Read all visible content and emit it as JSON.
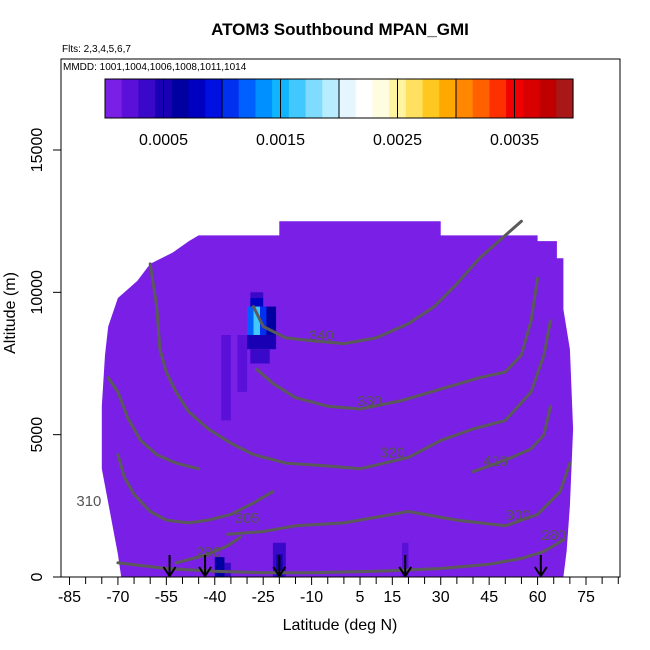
{
  "chart_data": {
    "type": "heatmap",
    "title": "ATOM3 Southbound MPAN_GMI",
    "flights_note": "Flts: 2,3,4,5,6,7",
    "dates_note": "MMDD: 1001,1004,1006,1008,1011,1014",
    "xlabel": "Latitude (deg N)",
    "ylabel": "Altitude (m)",
    "xlim": [
      -85,
      85
    ],
    "ylim": [
      0,
      17500
    ],
    "x_tick_labels": [
      "-85",
      "-70",
      "-55",
      "-40",
      "-25",
      "-10",
      "5",
      "15",
      "30",
      "45",
      "60",
      "75"
    ],
    "x_tick_values": [
      -85,
      -70,
      -55,
      -40,
      -25,
      -10,
      5,
      15,
      30,
      45,
      60,
      75
    ],
    "x_minor_ticks": [
      -80,
      -75,
      -65,
      -60,
      -50,
      -45,
      -35,
      -30,
      -20,
      -15,
      -5,
      0,
      10,
      20,
      25,
      35,
      40,
      50,
      55,
      65,
      70,
      80,
      85
    ],
    "y_tick_labels": [
      "0",
      "5000",
      "10000",
      "15000"
    ],
    "y_tick_values": [
      0,
      5000,
      10000,
      15000
    ],
    "colorbar": {
      "range": [
        0,
        0.004
      ],
      "tick_labels": [
        "0.0005",
        "0.0015",
        "0.0025",
        "0.0035"
      ],
      "tick_values": [
        0.0005,
        0.0015,
        0.0025,
        0.0035
      ],
      "colors": [
        "#7a1fe6",
        "#5a10d8",
        "#3a08c8",
        "#1a00b4",
        "#0000a0",
        "#0000c0",
        "#0010e0",
        "#0030f0",
        "#0060ff",
        "#0090ff",
        "#10b4ff",
        "#40c8ff",
        "#80dcff",
        "#b8ecff",
        "#e6f6ff",
        "#ffffff",
        "#fffde0",
        "#fff4a0",
        "#ffe060",
        "#ffc820",
        "#ffa800",
        "#ff8800",
        "#ff6000",
        "#ff3000",
        "#f00000",
        "#d80000",
        "#c00000",
        "#a81818"
      ]
    },
    "field": {
      "background_color": "#7a1fe6",
      "domain_outline": [
        [
          -69,
          0
        ],
        [
          -70,
          800
        ],
        [
          -75,
          3800
        ],
        [
          -75,
          6000
        ],
        [
          -74,
          7800
        ],
        [
          -73,
          8800
        ],
        [
          -70,
          9800
        ],
        [
          -64,
          10400
        ],
        [
          -60,
          11000
        ],
        [
          -53,
          11400
        ],
        [
          -48,
          11800
        ],
        [
          -45,
          12000
        ],
        [
          -39,
          12000
        ],
        [
          -20,
          12000
        ],
        [
          -20,
          12500
        ],
        [
          30,
          12500
        ],
        [
          30,
          12000
        ],
        [
          60,
          12000
        ],
        [
          60,
          11800
        ],
        [
          66,
          11800
        ],
        [
          66,
          11200
        ],
        [
          68,
          11200
        ],
        [
          68,
          9400
        ],
        [
          70,
          8000
        ],
        [
          71,
          5200
        ],
        [
          70,
          2500
        ],
        [
          69,
          900
        ],
        [
          68,
          0
        ]
      ],
      "cells": [
        {
          "lat": [
            -29,
            -25
          ],
          "alt": [
            9800,
            10000
          ],
          "value": 0.0004
        },
        {
          "lat": [
            -29,
            -25
          ],
          "alt": [
            9500,
            9800
          ],
          "value": 0.0008
        },
        {
          "lat": [
            -30,
            -28
          ],
          "alt": [
            8500,
            9500
          ],
          "value": 0.0012
        },
        {
          "lat": [
            -28,
            -26
          ],
          "alt": [
            8500,
            9500
          ],
          "value": 0.0017
        },
        {
          "lat": [
            -26,
            -24
          ],
          "alt": [
            8500,
            9500
          ],
          "value": 0.001
        },
        {
          "lat": [
            -24,
            -21
          ],
          "alt": [
            8500,
            9500
          ],
          "value": 0.0006
        },
        {
          "lat": [
            -30,
            -21
          ],
          "alt": [
            8000,
            8500
          ],
          "value": 0.0005
        },
        {
          "lat": [
            -29,
            -23
          ],
          "alt": [
            7500,
            8000
          ],
          "value": 0.0003
        },
        {
          "lat": [
            -38,
            -35
          ],
          "alt": [
            5500,
            8500
          ],
          "value": 0.0002
        },
        {
          "lat": [
            -33,
            -30
          ],
          "alt": [
            6500,
            8500
          ],
          "value": 0.0002
        },
        {
          "lat": [
            -40,
            -37
          ],
          "alt": [
            0,
            700
          ],
          "value": 0.0006
        },
        {
          "lat": [
            -37,
            -35
          ],
          "alt": [
            0,
            500
          ],
          "value": 0.0003
        },
        {
          "lat": [
            -22,
            -18
          ],
          "alt": [
            0,
            1200
          ],
          "value": 0.0003
        },
        {
          "lat": [
            -21,
            -19
          ],
          "alt": [
            0,
            800
          ],
          "value": 0.0005
        },
        {
          "lat": [
            18,
            20
          ],
          "alt": [
            0,
            1200
          ],
          "value": 0.0002
        }
      ]
    },
    "contours": [
      {
        "label": "280",
        "label_at": [
          65,
          1300
        ],
        "points": [
          [
            -70,
            500
          ],
          [
            -55,
            300
          ],
          [
            -40,
            200
          ],
          [
            -25,
            150
          ],
          [
            -10,
            150
          ],
          [
            10,
            200
          ],
          [
            30,
            300
          ],
          [
            45,
            450
          ],
          [
            55,
            650
          ],
          [
            62,
            900
          ],
          [
            68,
            1300
          ]
        ]
      },
      {
        "label": "290",
        "label_at": [
          -42,
          700
        ],
        "points": [
          [
            -52,
            500
          ],
          [
            -45,
            700
          ],
          [
            -40,
            900
          ],
          [
            -36,
            1100
          ],
          [
            -32,
            1400
          ]
        ]
      },
      {
        "label": "300",
        "label_at": [
          54,
          2000
        ],
        "points": [
          [
            -36,
            1500
          ],
          [
            -25,
            1600
          ],
          [
            -15,
            1800
          ],
          [
            0,
            1900
          ],
          [
            20,
            2300
          ],
          [
            35,
            2000
          ],
          [
            50,
            1800
          ],
          [
            60,
            2200
          ],
          [
            67,
            3000
          ],
          [
            70,
            4000
          ]
        ]
      },
      {
        "label": "305",
        "label_at": [
          -30,
          1900
        ],
        "points": [
          [
            -70,
            4300
          ],
          [
            -68,
            3500
          ],
          [
            -65,
            2900
          ],
          [
            -60,
            2300
          ],
          [
            -55,
            2000
          ],
          [
            -48,
            1900
          ],
          [
            -42,
            2000
          ],
          [
            -35,
            2200
          ],
          [
            -28,
            2600
          ],
          [
            -22,
            3000
          ]
        ]
      },
      {
        "label": "310",
        "label_at": [
          -79,
          2500
        ],
        "points": [
          [
            -73,
            7000
          ],
          [
            -70,
            6500
          ],
          [
            -67,
            5600
          ],
          [
            -63,
            4800
          ],
          [
            -58,
            4300
          ],
          [
            -52,
            4000
          ],
          [
            -45,
            3800
          ]
        ]
      },
      {
        "label": "320",
        "label_at": [
          15,
          4200
        ],
        "points": [
          [
            -60,
            11000
          ],
          [
            -58,
            9500
          ],
          [
            -57,
            8000
          ],
          [
            -55,
            7200
          ],
          [
            -52,
            6500
          ],
          [
            -48,
            5800
          ],
          [
            -42,
            5200
          ],
          [
            -35,
            4700
          ],
          [
            -28,
            4300
          ],
          [
            -18,
            4000
          ],
          [
            -5,
            3900
          ],
          [
            5,
            3800
          ],
          [
            20,
            4200
          ],
          [
            30,
            4800
          ],
          [
            40,
            5200
          ],
          [
            50,
            5500
          ],
          [
            58,
            6500
          ],
          [
            62,
            7800
          ],
          [
            64,
            9000
          ]
        ]
      },
      {
        "label": "410",
        "label_at": [
          47,
          3900
        ],
        "points": [
          [
            40,
            3700
          ],
          [
            45,
            3900
          ],
          [
            52,
            4200
          ],
          [
            58,
            4500
          ],
          [
            62,
            5000
          ],
          [
            64,
            6000
          ]
        ]
      },
      {
        "label": "330",
        "label_at": [
          8,
          6000
        ],
        "points": [
          [
            -27,
            7300
          ],
          [
            -22,
            6800
          ],
          [
            -15,
            6300
          ],
          [
            -5,
            6000
          ],
          [
            5,
            5900
          ],
          [
            18,
            6200
          ],
          [
            30,
            6600
          ],
          [
            42,
            7000
          ],
          [
            50,
            7200
          ],
          [
            55,
            7800
          ],
          [
            58,
            9000
          ],
          [
            60,
            10500
          ]
        ]
      },
      {
        "label": "340",
        "label_at": [
          -7,
          8300
        ],
        "points": [
          [
            -28,
            9500
          ],
          [
            -25,
            8800
          ],
          [
            -18,
            8400
          ],
          [
            -10,
            8300
          ],
          [
            0,
            8200
          ],
          [
            10,
            8400
          ],
          [
            20,
            8900
          ],
          [
            28,
            9500
          ],
          [
            35,
            10300
          ],
          [
            42,
            11200
          ],
          [
            50,
            12000
          ],
          [
            55,
            12500
          ]
        ]
      }
    ],
    "flight_markers": [
      -54,
      -43,
      -20,
      19,
      61
    ]
  }
}
